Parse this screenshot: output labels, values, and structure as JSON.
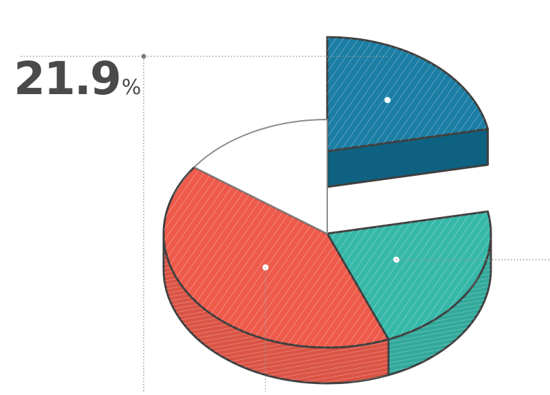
{
  "chart_data": {
    "type": "pie",
    "style": "3d hand-drawn pie with exploded slice",
    "title": "",
    "slices": [
      {
        "name": "",
        "value": 21.9,
        "color": "#1279a0",
        "exploded": true
      },
      {
        "name": "",
        "value": 22.0,
        "color": "#36b8a8",
        "exploded": false
      },
      {
        "name": "",
        "value": 41.0,
        "color": "#ee5b4b",
        "exploded": false
      },
      {
        "name": "",
        "value": 15.1,
        "color": "#ffffff",
        "exploded": false
      }
    ],
    "annotations": [
      {
        "slice": 0,
        "value": "21.9",
        "unit": "%"
      }
    ],
    "outline_color": "#3f3f3f",
    "leader_color": "#9a9a9a"
  }
}
